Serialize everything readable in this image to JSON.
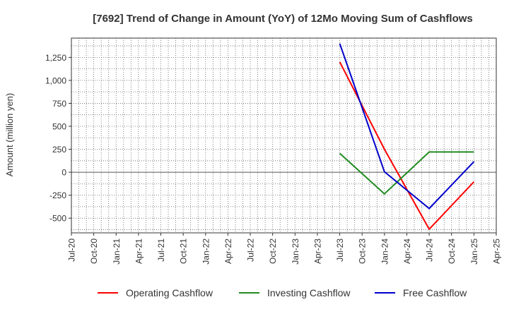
{
  "chart_data": {
    "type": "line",
    "title": "[7692]  Trend of Change in Amount (YoY) of 12Mo Moving Sum of Cashflows",
    "xlabel": "",
    "ylabel": "Amount (million yen)",
    "ylim": [
      -660,
      1460
    ],
    "yticks": [
      -500,
      -250,
      0,
      250,
      500,
      750,
      1000,
      1250
    ],
    "ytick_labels": [
      "-500",
      "-250",
      "0",
      "250",
      "500",
      "750",
      "1,000",
      "1,250"
    ],
    "x_ticks": [
      "Jul-20",
      "Oct-20",
      "Jan-21",
      "Apr-21",
      "Jul-21",
      "Oct-21",
      "Jan-22",
      "Apr-22",
      "Jul-22",
      "Oct-22",
      "Jan-23",
      "Apr-23",
      "Jul-23",
      "Oct-23",
      "Jan-24",
      "Apr-24",
      "Jul-24",
      "Oct-24",
      "Jan-25",
      "Apr-25"
    ],
    "grid": true,
    "legend_position": "bottom",
    "series": [
      {
        "name": "Operating Cashflow",
        "color": "#ff0000",
        "x": [
          "Jul-23",
          "Jan-24",
          "Jul-24",
          "Jan-25"
        ],
        "values": [
          1200,
          250,
          -620,
          -105
        ]
      },
      {
        "name": "Investing Cashflow",
        "color": "#228b22",
        "x": [
          "Jul-23",
          "Jan-24",
          "Jul-24",
          "Jan-25"
        ],
        "values": [
          205,
          -235,
          220,
          220
        ]
      },
      {
        "name": "Free Cashflow",
        "color": "#0000cc",
        "x": [
          "Jul-23",
          "Jan-24",
          "Jul-24",
          "Jan-25"
        ],
        "values": [
          1400,
          5,
          -395,
          115
        ]
      }
    ]
  }
}
